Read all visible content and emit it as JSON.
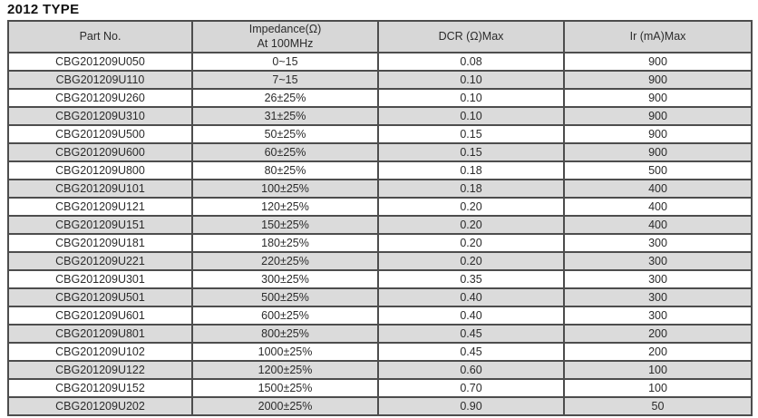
{
  "page_title": "2012 TYPE",
  "colors": {
    "border": "#4d4d4d",
    "header_bg": "#d7d7d7",
    "alt_row_bg": "#dbdbdb",
    "text": "#2b2b2b",
    "title": "#111111"
  },
  "table": {
    "columns": {
      "part_no": "Part No.",
      "impedance_line1": "Impedance(Ω)",
      "impedance_line2": "At 100MHz",
      "dcr": "DCR (Ω)Max",
      "ir": "Ir (mA)Max"
    },
    "rows": [
      [
        "CBG201209U050",
        "0~15",
        "0.08",
        "900"
      ],
      [
        "CBG201209U110",
        "7~15",
        "0.10",
        "900"
      ],
      [
        "CBG201209U260",
        "26±25%",
        "0.10",
        "900"
      ],
      [
        "CBG201209U310",
        "31±25%",
        "0.10",
        "900"
      ],
      [
        "CBG201209U500",
        "50±25%",
        "0.15",
        "900"
      ],
      [
        "CBG201209U600",
        "60±25%",
        "0.15",
        "900"
      ],
      [
        "CBG201209U800",
        "80±25%",
        "0.18",
        "500"
      ],
      [
        "CBG201209U101",
        "100±25%",
        "0.18",
        "400"
      ],
      [
        "CBG201209U121",
        "120±25%",
        "0.20",
        "400"
      ],
      [
        "CBG201209U151",
        "150±25%",
        "0.20",
        "400"
      ],
      [
        "CBG201209U181",
        "180±25%",
        "0.20",
        "300"
      ],
      [
        "CBG201209U221",
        "220±25%",
        "0.20",
        "300"
      ],
      [
        "CBG201209U301",
        "300±25%",
        "0.35",
        "300"
      ],
      [
        "CBG201209U501",
        "500±25%",
        "0.40",
        "300"
      ],
      [
        "CBG201209U601",
        "600±25%",
        "0.40",
        "300"
      ],
      [
        "CBG201209U801",
        "800±25%",
        "0.45",
        "200"
      ],
      [
        "CBG201209U102",
        "1000±25%",
        "0.45",
        "200"
      ],
      [
        "CBG201209U122",
        "1200±25%",
        "0.60",
        "100"
      ],
      [
        "CBG201209U152",
        "1500±25%",
        "0.70",
        "100"
      ],
      [
        "CBG201209U202",
        "2000±25%",
        "0.90",
        "50"
      ]
    ]
  }
}
